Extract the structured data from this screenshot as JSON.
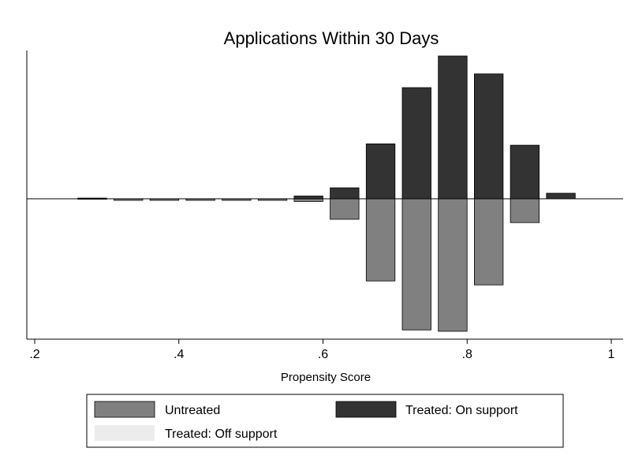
{
  "chart_data": {
    "type": "bar",
    "title": "Applications Within 30 Days",
    "xlabel": "Propensity Score",
    "ylabel": "",
    "xlim": [
      0.2,
      1.0
    ],
    "x_ticks": [
      {
        "value": 0.2,
        "label": ".2"
      },
      {
        "value": 0.4,
        "label": ".4"
      },
      {
        "value": 0.6,
        "label": ".6"
      },
      {
        "value": 0.8,
        "label": ".8"
      },
      {
        "value": 1.0,
        "label": "1"
      }
    ],
    "y_ticks_shown": false,
    "grid": false,
    "ylim": [
      -1.0,
      1.05
    ],
    "bin_centers": [
      0.23,
      0.28,
      0.33,
      0.38,
      0.43,
      0.48,
      0.53,
      0.58,
      0.63,
      0.68,
      0.73,
      0.78,
      0.83,
      0.88,
      0.93
    ],
    "bin_width": 0.04,
    "series": [
      {
        "name": "Untreated",
        "color": "#808080",
        "direction": "down",
        "values": [
          0.0,
          0.0,
          0.012,
          0.012,
          0.012,
          0.012,
          0.012,
          0.02,
          0.155,
          0.62,
          0.99,
          1.0,
          0.65,
          0.18,
          0.0
        ]
      },
      {
        "name": "Treated: On support",
        "color": "#333333",
        "direction": "up",
        "values": [
          0.0,
          0.005,
          0.0,
          0.0,
          0.0,
          0.0,
          0.0,
          0.02,
          0.08,
          0.4,
          0.81,
          1.04,
          0.91,
          0.39,
          0.04
        ]
      },
      {
        "name": "Treated: Off support",
        "color": "#ececec",
        "direction": "up",
        "values": [
          0,
          0,
          0,
          0,
          0,
          0,
          0,
          0,
          0,
          0,
          0,
          0,
          0,
          0,
          0
        ]
      }
    ],
    "legend": {
      "placement": "bottom",
      "entries": [
        "Untreated",
        "Treated: On support",
        "Treated: Off support"
      ]
    }
  }
}
